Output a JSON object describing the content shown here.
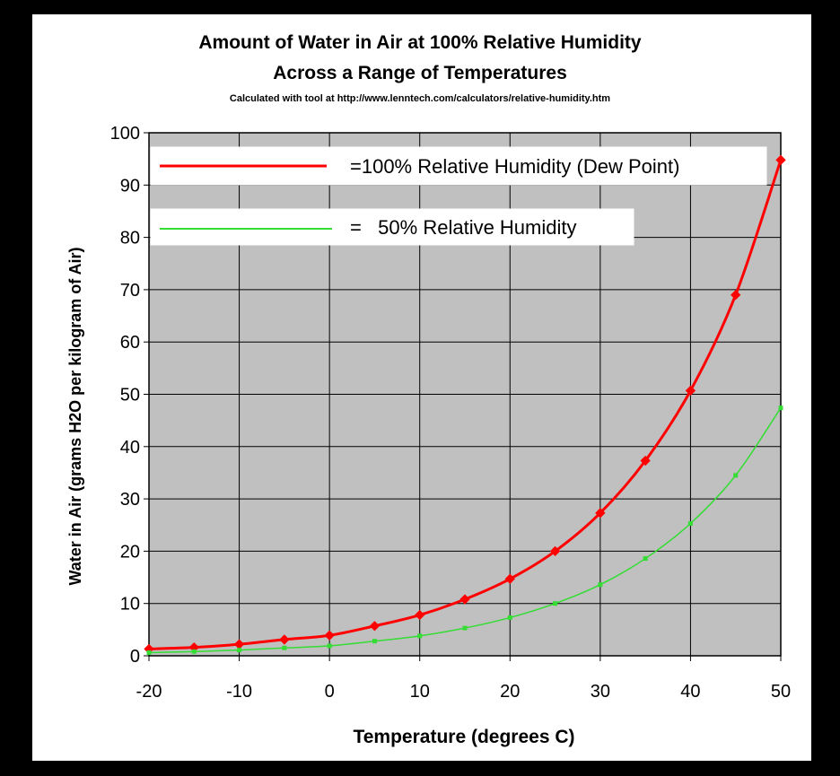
{
  "chart_data": {
    "type": "line",
    "title": "Amount of Water in Air at 100% Relative Humidity",
    "subtitle": "Across a Range of Temperatures",
    "note": "Calculated with tool at http://www.lenntech.com/calculators/relative-humidity.htm",
    "xlabel": "Temperature (degrees C)",
    "ylabel": "Water in Air (grams H2O per kilogram of Air)",
    "xlim": [
      -20,
      50
    ],
    "ylim": [
      0,
      100
    ],
    "xticks": [
      -20,
      -10,
      0,
      10,
      20,
      30,
      40,
      50
    ],
    "yticks": [
      0,
      10,
      20,
      30,
      40,
      50,
      60,
      70,
      80,
      90,
      100
    ],
    "grid": true,
    "x": [
      -20,
      -15,
      -10,
      -5,
      0,
      5,
      10,
      15,
      20,
      25,
      30,
      35,
      40,
      45,
      50
    ],
    "series": [
      {
        "name": "=100% Relative Humidity (Dew Point)",
        "color": "#ff0000",
        "values": [
          1.3,
          1.6,
          2.2,
          3.1,
          3.9,
          5.7,
          7.8,
          10.8,
          14.7,
          20.0,
          27.3,
          37.3,
          50.7,
          69.0,
          94.8
        ]
      },
      {
        "name": "=   50% Relative Humidity",
        "color": "#33dd33",
        "values": [
          0.6,
          0.8,
          1.1,
          1.5,
          1.9,
          2.8,
          3.8,
          5.3,
          7.3,
          10.0,
          13.6,
          18.6,
          25.3,
          34.5,
          47.4
        ]
      }
    ],
    "legend": "top-left",
    "plot_background": "#c0c0c0"
  }
}
